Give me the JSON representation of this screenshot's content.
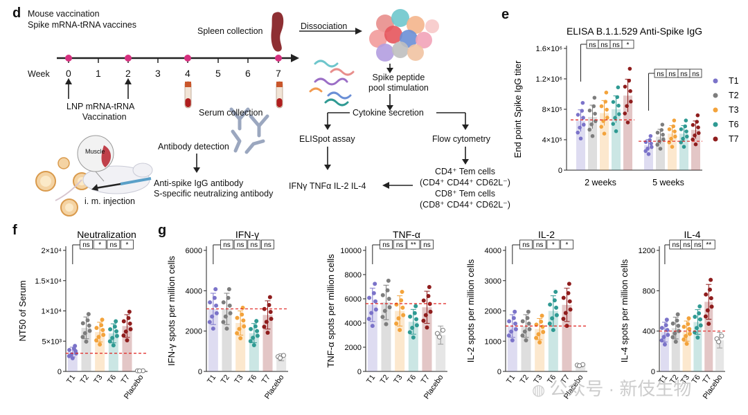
{
  "panels": {
    "d": "d",
    "e": "e",
    "f": "f",
    "g": "g"
  },
  "schematic": {
    "mouse_vaccination": "Mouse vaccination",
    "spike_vaccines": "Spike mRNA-tRNA vaccines",
    "week_label": "Week",
    "weeks": [
      "0",
      "1",
      "2",
      "3",
      "4",
      "5",
      "6",
      "7"
    ],
    "lnp_vaccination_1": "LNP mRNA-tRNA",
    "lnp_vaccination_2": "Vaccination",
    "spleen_collection": "Spleen collection",
    "dissociation": "Dissociation",
    "spike_peptide_1": "Spike peptide",
    "spike_peptide_2": "pool stimulation",
    "serum_collection": "Serum collection",
    "cytokine_secretion": "Cytokine secretion",
    "elispot": "ELISpot assay",
    "flow": "Flow cytometry",
    "antibody_detection": "Antibody detection",
    "muscle": "Muscle",
    "im_injection": "i. m. injection",
    "antispike_1": "Anti-spike IgG antibody",
    "antispike_2": "S-specific neutralizing antibody",
    "cytokines": "IFNγ TNFα IL-2 IL-4",
    "cd4_tem": "CD4⁺ Tem cells",
    "cd4_markers": "(CD4⁺ CD44⁺ CD62L⁻)",
    "cd8_tem": "CD8⁺ Tem cells",
    "cd8_markers": "(CD8⁺ CD44⁺ CD62L⁻)"
  },
  "legend": [
    "T1",
    "T2",
    "T3",
    "T6",
    "T7"
  ],
  "colors": {
    "T1": "#7b73c9",
    "T2": "#7d7d7d",
    "T3": "#f3a33b",
    "T6": "#2f9a93",
    "T7": "#8f1d1d",
    "Placebo": "#9a9a9a",
    "refline": "#e0201e",
    "pink_dot": "#d6307f"
  },
  "watermark": "公众号 · 新伎生物",
  "chart_data": [
    {
      "id": "elisa",
      "type": "bar",
      "title": "ELISA B.1.1.529 Anti-Spike IgG",
      "ylabel": "End point Spike IgG titer",
      "yticks": [
        "0",
        "4×10⁵",
        "8×10⁵",
        "1.2×10⁶",
        "1.6×10⁶"
      ],
      "ylim": [
        0,
        1600000
      ],
      "groups": [
        "2 weeks",
        "5 weeks"
      ],
      "series": [
        {
          "name": "T1",
          "values": [
            650000,
            330000
          ]
        },
        {
          "name": "T2",
          "values": [
            700000,
            440000
          ]
        },
        {
          "name": "T3",
          "values": [
            750000,
            480000
          ]
        },
        {
          "name": "T6",
          "values": [
            800000,
            480000
          ]
        },
        {
          "name": "T7",
          "values": [
            980000,
            530000
          ]
        }
      ],
      "reflines": [
        660000,
        380000
      ],
      "sig_2wk": [
        "ns",
        "ns",
        "ns",
        "*"
      ],
      "sig_5wk": [
        "ns",
        "ns",
        "ns",
        "ns"
      ]
    },
    {
      "id": "neutralization",
      "type": "bar",
      "title": "Neutralization",
      "ylabel": "NT50 of Serum",
      "yticks": [
        "0",
        "5×10³",
        "1×10⁴",
        "1.5×10⁴",
        "2×10⁴"
      ],
      "ylim": [
        0,
        20000
      ],
      "categories": [
        "T1",
        "T2",
        "T3",
        "T6",
        "T7",
        "Placebo"
      ],
      "values": [
        3200,
        7200,
        6500,
        6300,
        7500,
        100
      ],
      "refline": 3000,
      "sig": [
        "ns",
        "*",
        "ns",
        "*"
      ]
    },
    {
      "id": "ifng",
      "type": "bar",
      "title": "IFN-γ",
      "ylabel": "IFN-γ spots per million cells",
      "yticks": [
        "0",
        "2000",
        "4000",
        "6000"
      ],
      "ylim": [
        0,
        6000
      ],
      "categories": [
        "T1",
        "T2",
        "T3",
        "T6",
        "T7",
        "Placebo"
      ],
      "values": [
        3100,
        3100,
        2400,
        1900,
        2800,
        700
      ],
      "refline": 3100,
      "sig": [
        "ns",
        "ns",
        "ns",
        "ns"
      ]
    },
    {
      "id": "tnfa",
      "type": "bar",
      "title": "TNF-α",
      "ylabel": "TNF-α spots per million cells",
      "yticks": [
        "0",
        "2000",
        "4000",
        "6000",
        "8000",
        "10000"
      ],
      "ylim": [
        0,
        10000
      ],
      "categories": [
        "T1",
        "T2",
        "T3",
        "T6",
        "T7",
        "Placebo"
      ],
      "values": [
        5500,
        5700,
        5000,
        4100,
        5300,
        3000
      ],
      "refline": 5600,
      "sig": [
        "ns",
        "ns",
        "**",
        "ns"
      ]
    },
    {
      "id": "il2",
      "type": "bar",
      "title": "IL-2",
      "ylabel": "IL-2 spots per million cells",
      "yticks": [
        "0",
        "1000",
        "2000",
        "3000",
        "4000"
      ],
      "ylim": [
        0,
        4000
      ],
      "categories": [
        "T1",
        "T2",
        "T3",
        "T6",
        "T7",
        "Placebo"
      ],
      "values": [
        1500,
        1500,
        1400,
        2000,
        2200,
        200
      ],
      "refline": 1500,
      "sig": [
        "ns",
        "ns",
        "*",
        "*"
      ]
    },
    {
      "id": "il4",
      "type": "bar",
      "title": "IL-4",
      "ylabel": "IL-4 spots per million cells",
      "yticks": [
        "0",
        "400",
        "800",
        "1200"
      ],
      "ylim": [
        0,
        1200
      ],
      "categories": [
        "T1",
        "T2",
        "T3",
        "T6",
        "T7",
        "Placebo"
      ],
      "values": [
        390,
        430,
        400,
        490,
        690,
        310
      ],
      "refline": 400,
      "sig": [
        "ns",
        "ns",
        "ns",
        "**"
      ]
    }
  ]
}
